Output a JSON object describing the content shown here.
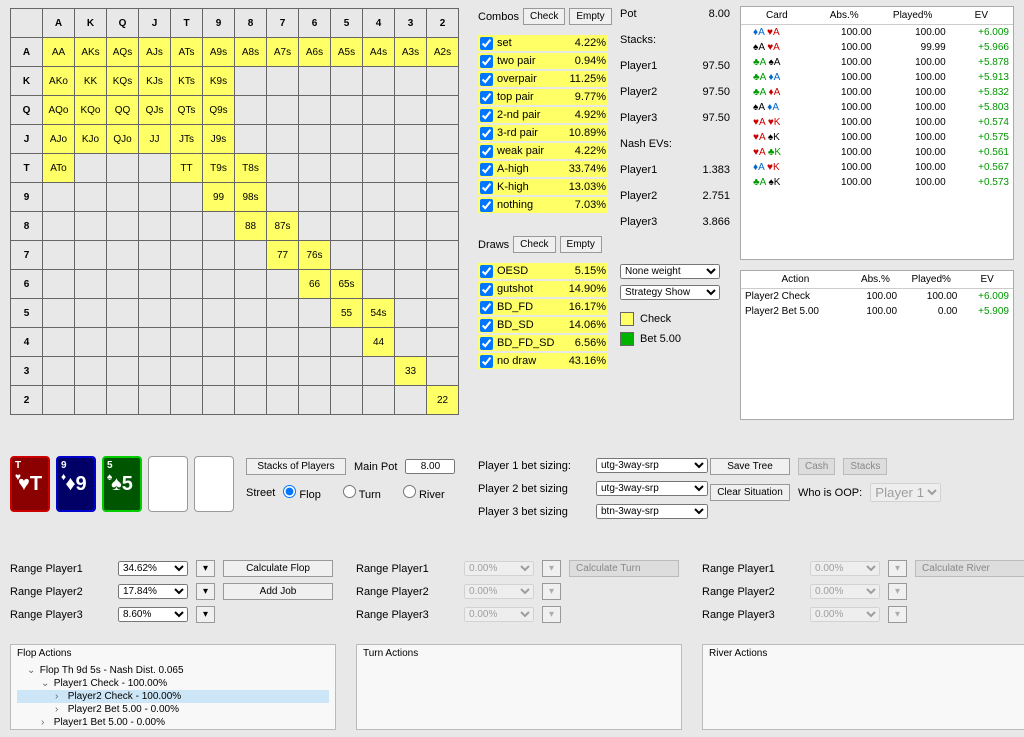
{
  "matrix": {
    "ranks": [
      "A",
      "K",
      "Q",
      "J",
      "T",
      "9",
      "8",
      "7",
      "6",
      "5",
      "4",
      "3",
      "2"
    ],
    "highlighted": [
      "AA",
      "AKs",
      "AQs",
      "AJs",
      "ATs",
      "A9s",
      "A8s",
      "A7s",
      "A6s",
      "A5s",
      "A4s",
      "A3s",
      "A2s",
      "AKo",
      "KK",
      "KQs",
      "KJs",
      "KTs",
      "K9s",
      "AQo",
      "KQo",
      "QQ",
      "QJs",
      "QTs",
      "Q9s",
      "AJo",
      "KJo",
      "QJo",
      "JJ",
      "JTs",
      "J9s",
      "ATo",
      "TT",
      "T9s",
      "T8s",
      "99",
      "98s",
      "88",
      "87s",
      "77",
      "76s",
      "66",
      "65s",
      "55",
      "54s",
      "44",
      "33",
      "22"
    ]
  },
  "combos": {
    "label": "Combos",
    "check": "Check",
    "empty": "Empty",
    "items": [
      {
        "label": "set",
        "pct": "4.22%"
      },
      {
        "label": "two pair",
        "pct": "0.94%"
      },
      {
        "label": "overpair",
        "pct": "11.25%"
      },
      {
        "label": "top pair",
        "pct": "9.77%"
      },
      {
        "label": "2-nd pair",
        "pct": "4.92%"
      },
      {
        "label": "3-rd pair",
        "pct": "10.89%"
      },
      {
        "label": "weak pair",
        "pct": "4.22%"
      },
      {
        "label": "A-high",
        "pct": "33.74%"
      },
      {
        "label": "K-high",
        "pct": "13.03%"
      },
      {
        "label": "nothing",
        "pct": "7.03%"
      }
    ]
  },
  "draws": {
    "label": "Draws",
    "check": "Check",
    "empty": "Empty",
    "items": [
      {
        "label": "OESD",
        "pct": "5.15%"
      },
      {
        "label": "gutshot",
        "pct": "14.90%"
      },
      {
        "label": "BD_FD",
        "pct": "16.17%"
      },
      {
        "label": "BD_SD",
        "pct": "14.06%"
      },
      {
        "label": "BD_FD_SD",
        "pct": "6.56%"
      },
      {
        "label": "no draw",
        "pct": "43.16%"
      }
    ]
  },
  "potstacks": {
    "pot_lbl": "Pot",
    "pot": "8.00",
    "stacks_lbl": "Stacks:",
    "rows": [
      {
        "lbl": "Player1",
        "val": "97.50"
      },
      {
        "lbl": "Player2",
        "val": "97.50"
      },
      {
        "lbl": "Player3",
        "val": "97.50"
      }
    ],
    "nash_lbl": "Nash EVs:",
    "nash": [
      {
        "lbl": "Player1",
        "val": "1.383"
      },
      {
        "lbl": "Player2",
        "val": "2.751"
      },
      {
        "lbl": "Player3",
        "val": "3.866"
      }
    ]
  },
  "strategy": {
    "weight": "None weight",
    "show": "Strategy Show",
    "legend": [
      {
        "color": "#ffff66",
        "label": "Check"
      },
      {
        "color": "#00b300",
        "label": "Bet 5.00"
      }
    ]
  },
  "cardtable": {
    "headers": [
      "Card",
      "Abs.%",
      "Played%",
      "EV"
    ],
    "rows": [
      {
        "c1": {
          "s": "d",
          "t": "♦A"
        },
        "c2": {
          "s": "h",
          "t": "♥A"
        },
        "abs": "100.00",
        "pl": "100.00",
        "ev": "+6.009"
      },
      {
        "c1": {
          "s": "s",
          "t": "♠A"
        },
        "c2": {
          "s": "h",
          "t": "♥A"
        },
        "abs": "100.00",
        "pl": "99.99",
        "ev": "+5.966"
      },
      {
        "c1": {
          "s": "c",
          "t": "♣A"
        },
        "c2": {
          "s": "s",
          "t": "♠A"
        },
        "abs": "100.00",
        "pl": "100.00",
        "ev": "+5.878"
      },
      {
        "c1": {
          "s": "c",
          "t": "♣A"
        },
        "c2": {
          "s": "d",
          "t": "♦A"
        },
        "abs": "100.00",
        "pl": "100.00",
        "ev": "+5.913"
      },
      {
        "c1": {
          "s": "c",
          "t": "♣A"
        },
        "c2": {
          "s": "h",
          "t": "♦A"
        },
        "abs": "100.00",
        "pl": "100.00",
        "ev": "+5.832"
      },
      {
        "c1": {
          "s": "s",
          "t": "♠A"
        },
        "c2": {
          "s": "d",
          "t": "♦A"
        },
        "abs": "100.00",
        "pl": "100.00",
        "ev": "+5.803"
      },
      {
        "c1": {
          "s": "h",
          "t": "♥A"
        },
        "c2": {
          "s": "h",
          "t": "♥K"
        },
        "abs": "100.00",
        "pl": "100.00",
        "ev": "+0.574"
      },
      {
        "c1": {
          "s": "h",
          "t": "♥A"
        },
        "c2": {
          "s": "s",
          "t": "♠K"
        },
        "abs": "100.00",
        "pl": "100.00",
        "ev": "+0.575"
      },
      {
        "c1": {
          "s": "h",
          "t": "♥A"
        },
        "c2": {
          "s": "c",
          "t": "♣K"
        },
        "abs": "100.00",
        "pl": "100.00",
        "ev": "+0.561"
      },
      {
        "c1": {
          "s": "d",
          "t": "♦A"
        },
        "c2": {
          "s": "h",
          "t": "♥K"
        },
        "abs": "100.00",
        "pl": "100.00",
        "ev": "+0.567"
      },
      {
        "c1": {
          "s": "c",
          "t": "♣A"
        },
        "c2": {
          "s": "s",
          "t": "♠K"
        },
        "abs": "100.00",
        "pl": "100.00",
        "ev": "+0.573"
      }
    ]
  },
  "actiontable": {
    "headers": [
      "Action",
      "Abs.%",
      "Played%",
      "EV"
    ],
    "rows": [
      {
        "a": "Player2 Check",
        "abs": "100.00",
        "pl": "100.00",
        "ev": "+6.009"
      },
      {
        "a": "Player2 Bet 5.00",
        "abs": "100.00",
        "pl": "0.00",
        "ev": "+5.909"
      }
    ]
  },
  "board": {
    "cards": [
      {
        "rank": "T",
        "suit": "♥",
        "cls": "red"
      },
      {
        "rank": "9",
        "suit": "♦",
        "cls": "blue"
      },
      {
        "rank": "5",
        "suit": "♠",
        "cls": "green"
      }
    ]
  },
  "mid": {
    "stacks_btn": "Stacks of Players",
    "mainpot_lbl": "Main Pot",
    "mainpot": "8.00",
    "street_lbl": "Street",
    "flop": "Flop",
    "turn": "Turn",
    "river": "River"
  },
  "betsizing": {
    "rows": [
      {
        "lbl": "Player 1 bet sizing:",
        "val": "utg-3way-srp"
      },
      {
        "lbl": "Player 2 bet sizing",
        "val": "utg-3way-srp"
      },
      {
        "lbl": "Player 3 bet sizing",
        "val": "btn-3way-srp"
      }
    ]
  },
  "rightbtns": {
    "save": "Save Tree",
    "cash": "Cash",
    "stacks": "Stacks",
    "clear": "Clear Situation",
    "who": "Who is OOP:",
    "who_val": "Player 1"
  },
  "ranges": {
    "cols": [
      {
        "calc": "Calculate Flop",
        "disabled": false,
        "rows": [
          {
            "lbl": "Range Player1",
            "val": "34.62%"
          },
          {
            "lbl": "Range Player2",
            "val": "17.84%"
          },
          {
            "lbl": "Range Player3",
            "val": "8.60%"
          }
        ],
        "addjob": "Add Job"
      },
      {
        "calc": "Calculate Turn",
        "disabled": true,
        "rows": [
          {
            "lbl": "Range Player1",
            "val": "0.00%"
          },
          {
            "lbl": "Range Player2",
            "val": "0.00%"
          },
          {
            "lbl": "Range Player3",
            "val": "0.00%"
          }
        ]
      },
      {
        "calc": "Calculate River",
        "disabled": true,
        "rows": [
          {
            "lbl": "Range Player1",
            "val": "0.00%"
          },
          {
            "lbl": "Range Player2",
            "val": "0.00%"
          },
          {
            "lbl": "Range Player3",
            "val": "0.00%"
          }
        ]
      }
    ]
  },
  "actions": {
    "flop": {
      "title": "Flop Actions",
      "tree": [
        {
          "lvl": 1,
          "arrow": "⌄",
          "text": "Flop Th 9d 5s - Nash Dist. 0.065"
        },
        {
          "lvl": 2,
          "arrow": "⌄",
          "text": "Player1 Check - 100.00%"
        },
        {
          "lvl": 3,
          "arrow": "›",
          "text": "Player2 Check - 100.00%",
          "sel": true
        },
        {
          "lvl": 3,
          "arrow": "›",
          "text": "Player2 Bet 5.00 - 0.00%"
        },
        {
          "lvl": 2,
          "arrow": "›",
          "text": "Player1 Bet 5.00 - 0.00%"
        }
      ]
    },
    "turn": {
      "title": "Turn Actions"
    },
    "river": {
      "title": "River Actions"
    }
  }
}
